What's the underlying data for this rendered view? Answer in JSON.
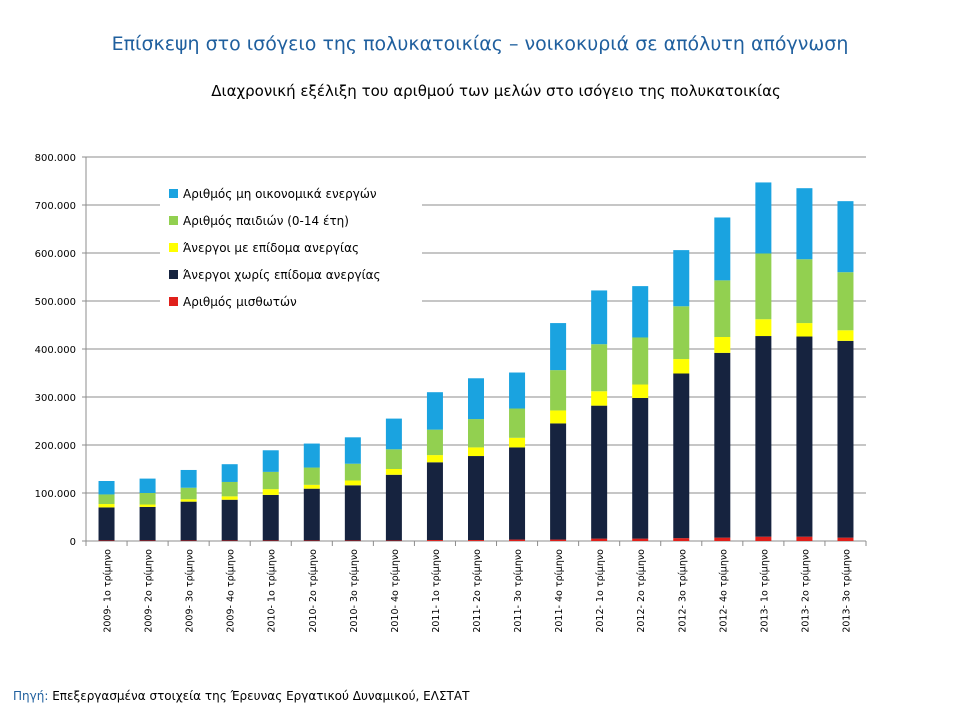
{
  "slide": {
    "title": "Επίσκεψη στο ισόγειο της πολυκατοικίας – νοικοκυριά σε απόλυτη απόγνωση",
    "source_label": "Πηγή:",
    "source_text": "Επεξεργασμένα στοιχεία της Έρευνας Εργατικού Δυναμικού, ΕΛΣΤΑΤ"
  },
  "chart_data": {
    "type": "bar",
    "stacked": true,
    "title": "Διαχρονική εξέλιξη του αριθμού των μελών στο ισόγειο της πολυκατοικίας",
    "xlabel": "",
    "ylabel": "",
    "ylim": [
      0,
      800000
    ],
    "yticks": [
      0,
      100000,
      200000,
      300000,
      400000,
      500000,
      600000,
      700000,
      800000
    ],
    "ytick_labels": [
      "0",
      "100.000",
      "200.000",
      "300.000",
      "400.000",
      "500.000",
      "600.000",
      "700.000",
      "800.000"
    ],
    "grid": true,
    "legend_position": "top-left",
    "categories": [
      "2009- 1ο τρίμηνο",
      "2009- 2ο τρίμηνο",
      "2009- 3ο τρίμηνο",
      "2009- 4ο τρίμηνο",
      "2010- 1ο τρίμηνο",
      "2010- 2ο τρίμηνο",
      "2010- 3ο τρίμηνο",
      "2010- 4ο τρίμηνο",
      "2011- 1ο τρίμηνο",
      "2011- 2ο τρίμηνο",
      "2011- 3ο τρίμηνο",
      "2011- 4ο τρίμηνο",
      "2012- 1ο τρίμηνο",
      "2012- 2ο τρίμηνο",
      "2012- 3ο τρίμηνο",
      "2012- 4ο τρίμηνο",
      "2013- 1ο τρίμηνο",
      "2013- 2ο τρίμηνο",
      "2013- 3ο τρίμηνο"
    ],
    "series": [
      {
        "name": "Αριθμός μισθωτών",
        "color": "#e0201b",
        "values": [
          1000,
          1000,
          1000,
          1000,
          1000,
          1000,
          1000,
          1000,
          2000,
          2000,
          3000,
          3000,
          5000,
          5000,
          6000,
          7000,
          9000,
          9000,
          7000
        ]
      },
      {
        "name": "Άνεργοι χωρίς επίδομα ανεργίας",
        "color": "#16233f",
        "values": [
          69000,
          70000,
          81000,
          85000,
          95000,
          108000,
          115000,
          137000,
          162000,
          175000,
          192000,
          242000,
          277000,
          293000,
          343000,
          385000,
          418000,
          417000,
          410000
        ]
      },
      {
        "name": "Άνεργοι με επίδομα ανεργίας",
        "color": "#ffff00",
        "values": [
          7000,
          5000,
          5000,
          7000,
          12000,
          8000,
          10000,
          12000,
          15000,
          18000,
          20000,
          27000,
          30000,
          28000,
          30000,
          33000,
          35000,
          28000,
          22000
        ]
      },
      {
        "name": "Αριθμός παιδιών (0-14 έτη)",
        "color": "#92d050",
        "values": [
          20000,
          24000,
          24000,
          30000,
          36000,
          36000,
          35000,
          41000,
          53000,
          59000,
          61000,
          84000,
          98000,
          98000,
          110000,
          118000,
          137000,
          133000,
          121000
        ]
      },
      {
        "name": "Αριθμός μη οικονομικά ενεργών",
        "color": "#1aa3e0",
        "values": [
          28000,
          30000,
          37000,
          37000,
          45000,
          50000,
          55000,
          64000,
          78000,
          85000,
          75000,
          98000,
          112000,
          107000,
          117000,
          131000,
          148000,
          148000,
          148000
        ]
      }
    ]
  }
}
